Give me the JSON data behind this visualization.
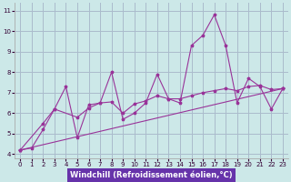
{
  "xlabel": "Windchill (Refroidissement éolien,°C)",
  "bg_color": "#cce8e8",
  "grid_color": "#aabbcc",
  "line_color": "#993399",
  "xlabel_bg": "#6633aa",
  "xlabel_fg": "#ffffff",
  "x_ticks": [
    0,
    1,
    2,
    3,
    4,
    5,
    6,
    7,
    8,
    9,
    10,
    11,
    12,
    13,
    14,
    15,
    16,
    17,
    18,
    19,
    20,
    21,
    22,
    23
  ],
  "y_ticks": [
    4,
    5,
    6,
    7,
    8,
    9,
    10,
    11
  ],
  "xlim": [
    -0.5,
    23.5
  ],
  "ylim": [
    3.8,
    11.4
  ],
  "series1_x": [
    0,
    1,
    2,
    3,
    4,
    5,
    6,
    7,
    8,
    9,
    10,
    11,
    12,
    13,
    14,
    15,
    16,
    17,
    18,
    19,
    20,
    21,
    22,
    23
  ],
  "series1_y": [
    4.2,
    4.3,
    5.2,
    6.2,
    7.3,
    4.8,
    6.4,
    6.5,
    8.0,
    5.7,
    6.0,
    6.5,
    7.9,
    6.7,
    6.5,
    9.3,
    9.8,
    10.8,
    9.3,
    6.5,
    7.7,
    7.3,
    6.2,
    7.2
  ],
  "series2_x": [
    0,
    23
  ],
  "series2_y": [
    4.2,
    7.2
  ],
  "series3_x": [
    0,
    2,
    3,
    5,
    6,
    7,
    8,
    9,
    10,
    11,
    12,
    13,
    14,
    15,
    16,
    17,
    18,
    19,
    20,
    21,
    22,
    23
  ],
  "series3_y": [
    4.2,
    5.5,
    6.2,
    5.8,
    6.25,
    6.5,
    6.55,
    6.0,
    6.45,
    6.6,
    6.85,
    6.7,
    6.7,
    6.85,
    7.0,
    7.1,
    7.2,
    7.1,
    7.3,
    7.35,
    7.15,
    7.2
  ],
  "tick_fontsize": 5.0,
  "label_fontsize": 6.0
}
